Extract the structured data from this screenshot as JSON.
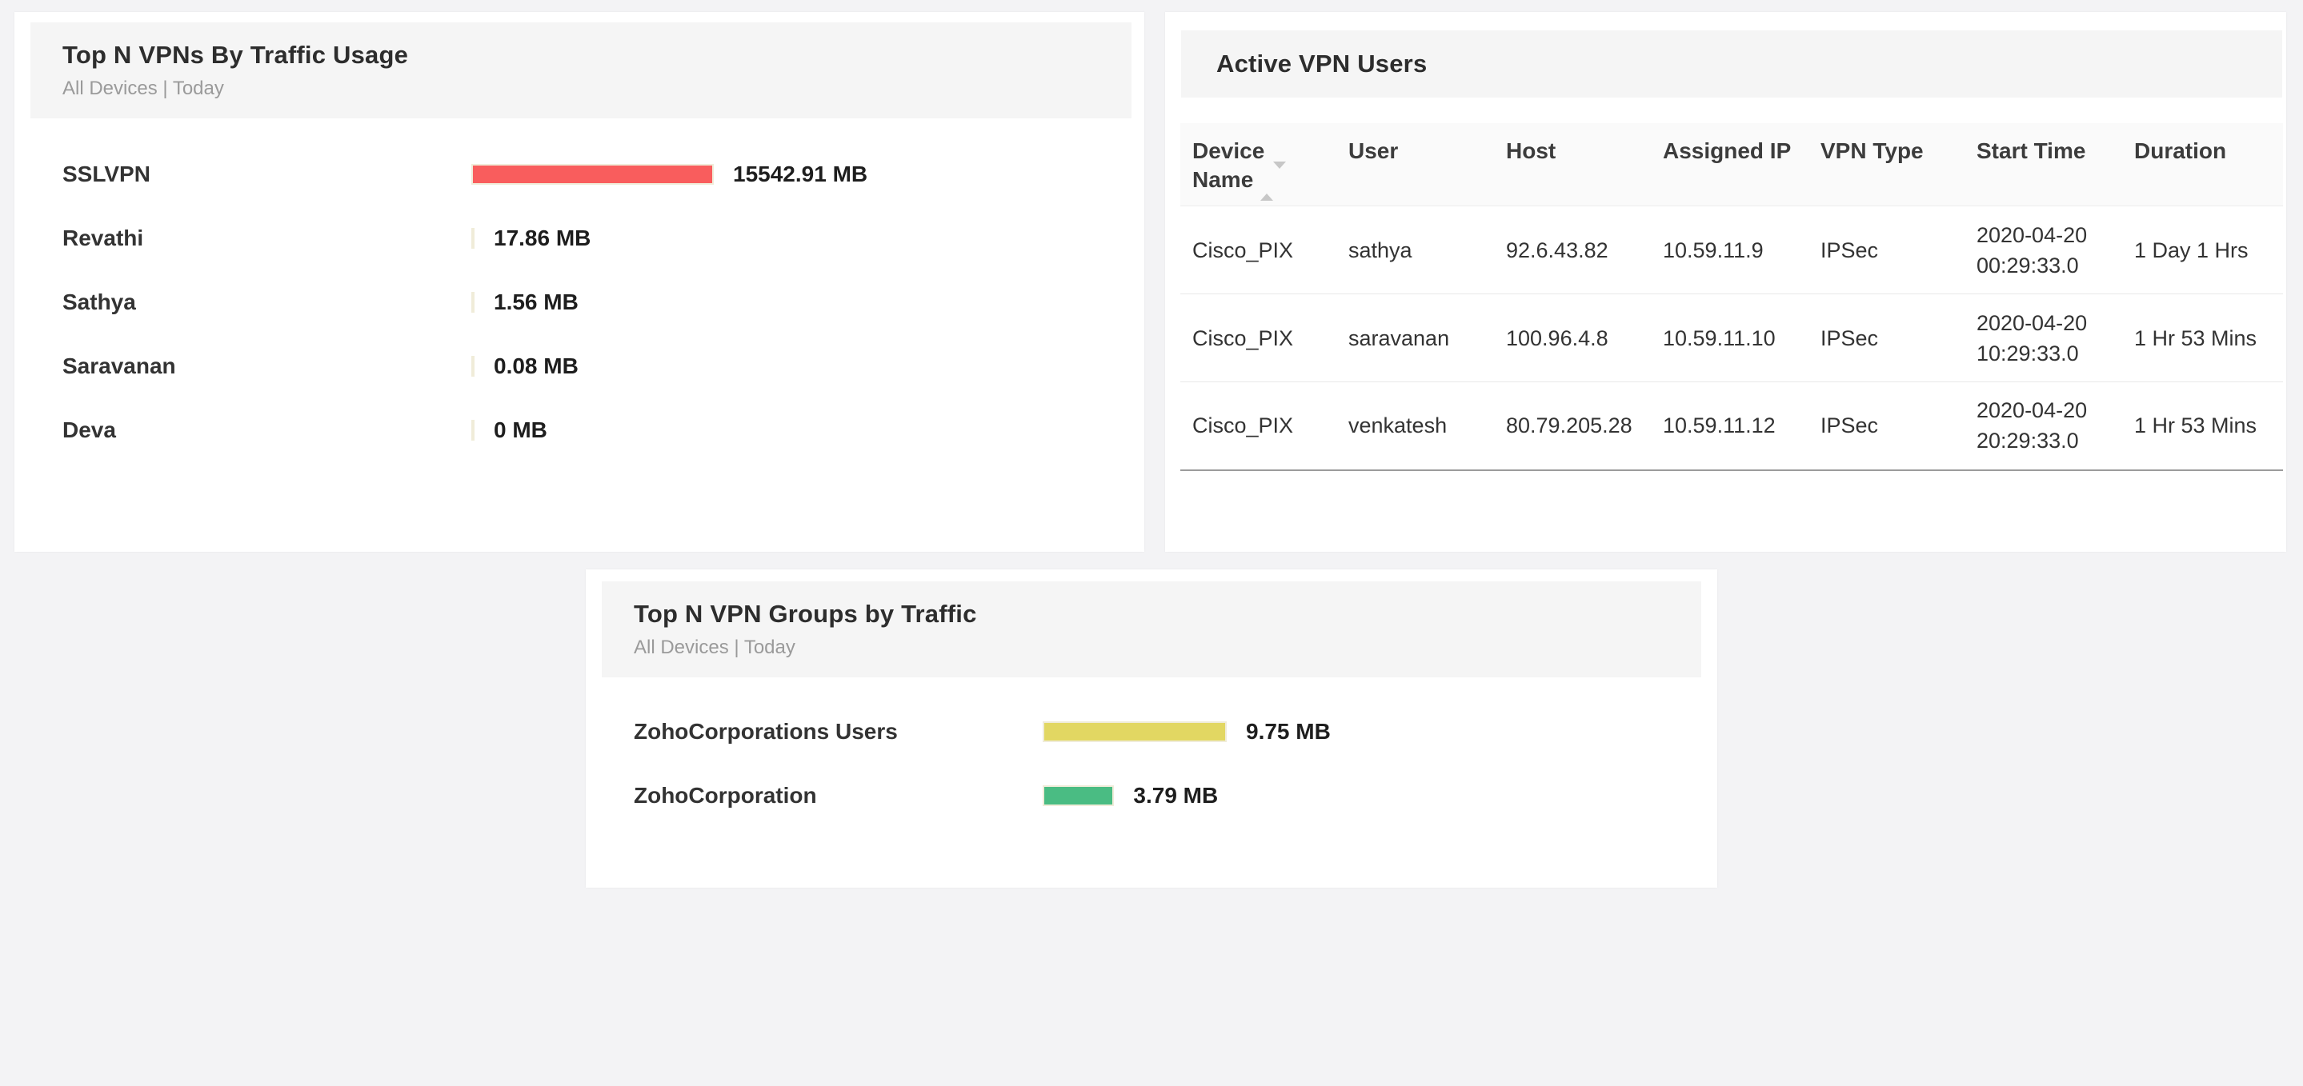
{
  "page_bg": "#f3f3f5",
  "top_vpns_widget": {
    "title": "Top N VPNs By Traffic Usage",
    "subtitle": "All Devices | Today",
    "chart_data": {
      "type": "bar",
      "orientation": "horizontal",
      "title": "Top N VPNs By Traffic Usage",
      "unit": "MB",
      "categories": [
        "SSLVPN",
        "Revathi",
        "Sathya",
        "Saravanan",
        "Deva"
      ],
      "values": [
        15542.91,
        17.86,
        1.56,
        0.08,
        0
      ],
      "value_labels": [
        "15542.91 MB",
        "17.86 MB",
        "1.56 MB",
        "0.08 MB",
        "0 MB"
      ],
      "xlim": [
        0,
        15542.91
      ],
      "bar_colors": [
        "#f95d5d",
        "#f95d5d",
        "#f95d5d",
        "#f95d5d",
        "#f95d5d"
      ],
      "bar_border_color": "#f0ecd9",
      "grid": false,
      "legend": "none"
    }
  },
  "active_vpn_users_widget": {
    "title": "Active VPN Users",
    "table": {
      "columns": [
        "Device Name",
        "User",
        "Host",
        "Assigned IP",
        "VPN Type",
        "Start Time",
        "Duration"
      ],
      "sorted_column": "Device Name",
      "sort_icon": "column-sort-arrows-icon",
      "rows": [
        [
          "Cisco_PIX",
          "sathya",
          "92.6.43.82",
          "10.59.11.9",
          "IPSec",
          "2020-04-20 00:29:33.0",
          "1 Day 1 Hrs"
        ],
        [
          "Cisco_PIX",
          "saravanan",
          "100.96.4.8",
          "10.59.11.10",
          "IPSec",
          "2020-04-20 10:29:33.0",
          "1 Hr 53 Mins"
        ],
        [
          "Cisco_PIX",
          "venkatesh",
          "80.79.205.28",
          "10.59.11.12",
          "IPSec",
          "2020-04-20 20:29:33.0",
          "1 Hr 53 Mins"
        ]
      ]
    }
  },
  "vpn_groups_widget": {
    "title": "Top N VPN Groups by Traffic",
    "subtitle": "All Devices | Today",
    "chart_data": {
      "type": "bar",
      "orientation": "horizontal",
      "title": "Top N VPN Groups by Traffic",
      "unit": "MB",
      "categories": [
        "ZohoCorporations Users",
        "ZohoCorporation"
      ],
      "values": [
        9.75,
        3.79
      ],
      "value_labels": [
        "9.75 MB",
        "3.79 MB"
      ],
      "xlim": [
        0,
        9.75
      ],
      "bar_colors": [
        "#e2d762",
        "#4abc83"
      ],
      "bar_border_color": "#f0ecd9",
      "grid": false,
      "legend": "none"
    }
  }
}
